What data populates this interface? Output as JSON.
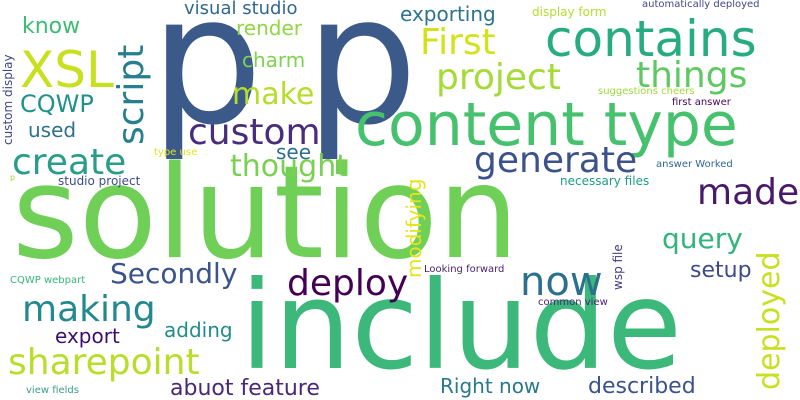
{
  "words": {
    "p": {
      "text": "p",
      "color": "#3b5a8a"
    },
    "solution": {
      "text": "solution",
      "color": "#6fcf57"
    },
    "include": {
      "text": "include",
      "color": "#3bb87a"
    },
    "content_type": {
      "text": "content type",
      "color": "#46c16e"
    },
    "contains": {
      "text": "contains",
      "color": "#27ac82"
    },
    "xsl": {
      "text": "XSL",
      "color": "#c7e020"
    },
    "script": {
      "text": "script",
      "color": "#277f8e"
    },
    "custom": {
      "text": "custom",
      "color": "#472d7b"
    },
    "generate": {
      "text": "generate",
      "color": "#3b528b"
    },
    "create": {
      "text": "create",
      "color": "#2a9d8a"
    },
    "first": {
      "text": "First",
      "color": "#d2e21b"
    },
    "project": {
      "text": "project",
      "color": "#a5db36"
    },
    "things": {
      "text": "things",
      "color": "#5ec962"
    },
    "make": {
      "text": "make",
      "color": "#b5de2b"
    },
    "made": {
      "text": "made",
      "color": "#481a6c"
    },
    "deploy": {
      "text": "deploy",
      "color": "#440154"
    },
    "deployed": {
      "text": "deployed",
      "color": "#c8e020"
    },
    "now": {
      "text": "now",
      "color": "#2d708e"
    },
    "making": {
      "text": "making",
      "color": "#23898e"
    },
    "sharepoint": {
      "text": "sharepoint",
      "color": "#b8de29"
    },
    "secondly": {
      "text": "Secondly",
      "color": "#3a548c"
    },
    "query": {
      "text": "query",
      "color": "#31b57b"
    },
    "thought": {
      "text": "thought",
      "color": "#7ad151"
    },
    "cqwp": {
      "text": "CQWP",
      "color": "#21918c"
    },
    "know": {
      "text": "know",
      "color": "#3dbc74"
    },
    "used": {
      "text": "used",
      "color": "#2c728e"
    },
    "visual_studio": {
      "text": "visual studio",
      "color": "#31688e"
    },
    "exporting": {
      "text": "exporting",
      "color": "#2c738e"
    },
    "render": {
      "text": "render",
      "color": "#8fd744"
    },
    "charm": {
      "text": "charm",
      "color": "#7fd34e"
    },
    "see": {
      "text": "see",
      "color": "#2e6e8e"
    },
    "modifying": {
      "text": "modifying",
      "color": "#e5e419"
    },
    "setup": {
      "text": "setup",
      "color": "#3e4a89"
    },
    "export": {
      "text": "export",
      "color": "#3b0f70"
    },
    "adding": {
      "text": "adding",
      "color": "#228c8d"
    },
    "abuot_feature": {
      "text": "abuot feature",
      "color": "#482878"
    },
    "right_now": {
      "text": "Right now",
      "color": "#2a788e"
    },
    "described": {
      "text": "described",
      "color": "#3b528b"
    },
    "display_form": {
      "text": "display form",
      "color": "#b5de2b"
    },
    "automatically_deployed": {
      "text": "automatically deployed",
      "color": "#3e4989"
    },
    "custom_display": {
      "text": "custom display",
      "color": "#3f4788"
    },
    "suggestions_cheers": {
      "text": "suggestions cheers",
      "color": "#a0da39"
    },
    "first_answer": {
      "text": "first answer",
      "color": "#450559"
    },
    "type_use": {
      "text": "type use",
      "color": "#e2e418"
    },
    "studio_project": {
      "text": "studio project",
      "color": "#3e4c8a"
    },
    "p_small": {
      "text": "p",
      "color": "#a8db34"
    },
    "answer_worked": {
      "text": "answer Worked",
      "color": "#31688e"
    },
    "necessary_files": {
      "text": "necessary files",
      "color": "#1f9a8a"
    },
    "wsp_file": {
      "text": "wsp file",
      "color": "#443983"
    },
    "cqwp_webpart": {
      "text": "CQWP webpart",
      "color": "#35b779"
    },
    "looking_forward": {
      "text": "Looking forward",
      "color": "#481f70"
    },
    "common_view": {
      "text": "common view",
      "color": "#482475"
    },
    "view_fields": {
      "text": "view fields",
      "color": "#3e9b8a"
    }
  }
}
